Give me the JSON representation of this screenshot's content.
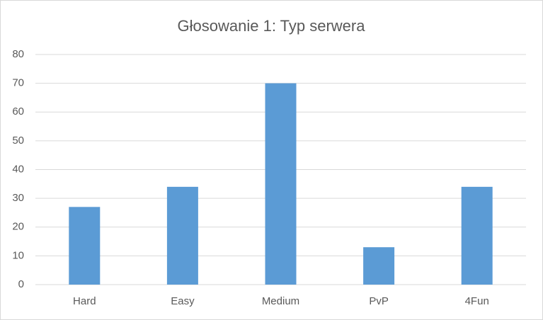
{
  "chart_data": {
    "type": "bar",
    "title": "Głosowanie 1: Typ serwera",
    "categories": [
      "Hard",
      "Easy",
      "Medium",
      "PvP",
      "4Fun"
    ],
    "values": [
      27,
      34,
      70,
      13,
      34
    ],
    "color": "#5b9bd5",
    "ylim": [
      0,
      80
    ],
    "yticks": [
      0,
      10,
      20,
      30,
      40,
      50,
      60,
      70,
      80
    ],
    "grid": true
  }
}
